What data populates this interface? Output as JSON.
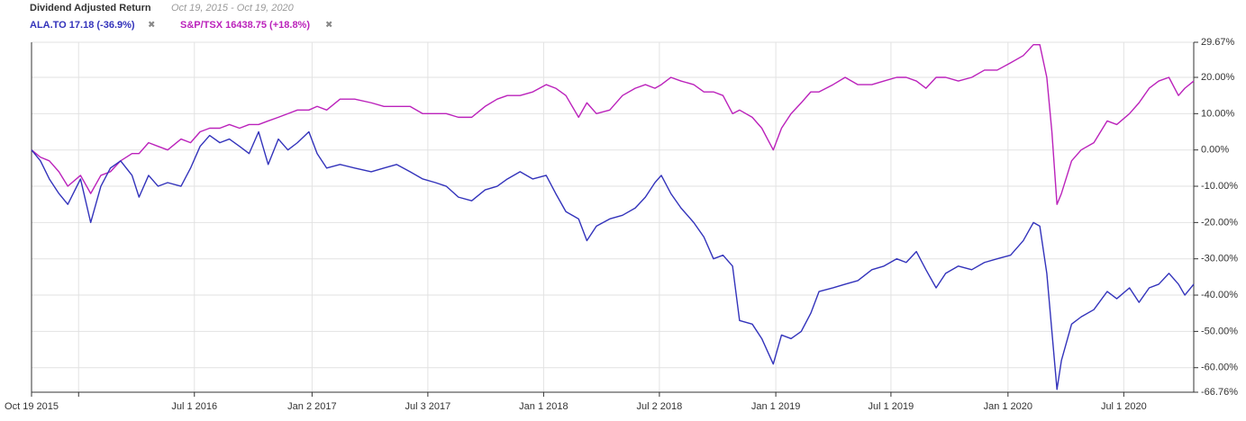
{
  "chart_data": {
    "type": "line",
    "title": "Dividend Adjusted Return",
    "subtitle": "Oct 19, 2015 - Oct 19, 2020",
    "x": [
      "2015-10-19",
      "2015-11-02",
      "2015-11-16",
      "2015-12-01",
      "2015-12-15",
      "2016-01-04",
      "2016-01-20",
      "2016-02-05",
      "2016-02-20",
      "2016-03-07",
      "2016-03-25",
      "2016-04-05",
      "2016-04-20",
      "2016-05-05",
      "2016-05-20",
      "2016-06-10",
      "2016-06-25",
      "2016-07-10",
      "2016-07-25",
      "2016-08-10",
      "2016-08-25",
      "2016-09-10",
      "2016-09-25",
      "2016-10-10",
      "2016-10-25",
      "2016-11-10",
      "2016-11-25",
      "2016-12-10",
      "2016-12-28",
      "2017-01-10",
      "2017-01-25",
      "2017-02-15",
      "2017-03-10",
      "2017-04-05",
      "2017-04-25",
      "2017-05-15",
      "2017-06-05",
      "2017-06-25",
      "2017-07-15",
      "2017-08-01",
      "2017-08-20",
      "2017-09-10",
      "2017-10-01",
      "2017-10-20",
      "2017-11-05",
      "2017-11-25",
      "2017-12-15",
      "2018-01-05",
      "2018-01-20",
      "2018-02-05",
      "2018-02-25",
      "2018-03-10",
      "2018-03-25",
      "2018-04-15",
      "2018-05-05",
      "2018-05-25",
      "2018-06-10",
      "2018-06-25",
      "2018-07-05",
      "2018-07-20",
      "2018-08-05",
      "2018-08-25",
      "2018-09-10",
      "2018-09-25",
      "2018-10-10",
      "2018-10-25",
      "2018-11-05",
      "2018-11-25",
      "2018-12-10",
      "2018-12-28",
      "2019-01-10",
      "2019-01-25",
      "2019-02-10",
      "2019-02-25",
      "2019-03-10",
      "2019-04-01",
      "2019-04-20",
      "2019-05-10",
      "2019-06-01",
      "2019-06-20",
      "2019-07-10",
      "2019-07-25",
      "2019-08-10",
      "2019-08-25",
      "2019-09-10",
      "2019-09-25",
      "2019-10-15",
      "2019-11-05",
      "2019-11-25",
      "2019-12-15",
      "2020-01-05",
      "2020-01-25",
      "2020-02-10",
      "2020-02-20",
      "2020-03-02",
      "2020-03-10",
      "2020-03-18",
      "2020-03-25",
      "2020-04-10",
      "2020-04-25",
      "2020-05-15",
      "2020-06-05",
      "2020-06-20",
      "2020-07-10",
      "2020-07-25",
      "2020-08-10",
      "2020-08-25",
      "2020-09-10",
      "2020-09-25",
      "2020-10-05",
      "2020-10-19"
    ],
    "series": [
      {
        "name": "ALA.TO 17.18 (-36.9%)",
        "color": "#3333bb",
        "values": [
          0,
          -3,
          -8,
          -12,
          -15,
          -8,
          -20,
          -10,
          -5,
          -3,
          -7,
          -13,
          -7,
          -10,
          -9,
          -10,
          -5,
          1,
          4,
          2,
          3,
          1,
          -1,
          5,
          -4,
          3,
          0,
          2,
          5,
          -1,
          -5,
          -4,
          -5,
          -6,
          -5,
          -4,
          -6,
          -8,
          -9,
          -10,
          -13,
          -14,
          -11,
          -10,
          -8,
          -6,
          -8,
          -7,
          -12,
          -17,
          -19,
          -25,
          -21,
          -19,
          -18,
          -16,
          -13,
          -9,
          -7,
          -12,
          -16,
          -20,
          -24,
          -30,
          -29,
          -32,
          -47,
          -48,
          -52,
          -59,
          -51,
          -52,
          -50,
          -45,
          -39,
          -38,
          -37,
          -36,
          -33,
          -32,
          -30,
          -31,
          -28,
          -33,
          -38,
          -34,
          -32,
          -33,
          -31,
          -30,
          -29,
          -25,
          -20,
          -21,
          -34,
          -50,
          -66,
          -58,
          -48,
          -46,
          -44,
          -39,
          -41,
          -38,
          -42,
          -38,
          -37,
          -34,
          -37,
          -40,
          -37
        ]
      },
      {
        "name": "S&P/TSX 16438.75 (+18.8%)",
        "color": "#bb22bb",
        "values": [
          0,
          -2,
          -3,
          -6,
          -10,
          -7,
          -12,
          -7,
          -6,
          -3,
          -1,
          -1,
          2,
          1,
          0,
          3,
          2,
          5,
          6,
          6,
          7,
          6,
          7,
          7,
          8,
          9,
          10,
          11,
          11,
          12,
          11,
          14,
          14,
          13,
          12,
          12,
          12,
          10,
          10,
          10,
          9,
          9,
          12,
          14,
          15,
          15,
          16,
          18,
          17,
          15,
          9,
          13,
          10,
          11,
          15,
          17,
          18,
          17,
          18,
          20,
          19,
          18,
          16,
          16,
          15,
          10,
          11,
          9,
          6,
          0,
          6,
          10,
          13,
          16,
          16,
          18,
          20,
          18,
          18,
          19,
          20,
          20,
          19,
          17,
          20,
          20,
          19,
          20,
          22,
          22,
          24,
          26,
          29,
          29,
          20,
          5,
          -15,
          -12,
          -3,
          0,
          2,
          8,
          7,
          10,
          13,
          17,
          19,
          20,
          15,
          17,
          19
        ]
      }
    ],
    "xlim": [
      "2015-10-19",
      "2020-10-19"
    ],
    "xticks": [
      {
        "value": "2015-10-19",
        "label": "Oct 19 2015"
      },
      {
        "value": "2016-01-01",
        "label": null
      },
      {
        "value": "2016-07-01",
        "label": "Jul 1 2016"
      },
      {
        "value": "2017-01-02",
        "label": "Jan 2 2017"
      },
      {
        "value": "2017-07-03",
        "label": "Jul 3 2017"
      },
      {
        "value": "2018-01-01",
        "label": "Jan 1 2018"
      },
      {
        "value": "2018-07-02",
        "label": "Jul 2 2018"
      },
      {
        "value": "2019-01-01",
        "label": "Jan 1 2019"
      },
      {
        "value": "2019-07-01",
        "label": "Jul 1 2019"
      },
      {
        "value": "2020-01-01",
        "label": "Jan 1 2020"
      },
      {
        "value": "2020-07-01",
        "label": "Jul 1 2020"
      }
    ],
    "ylim": [
      -66.76,
      29.67
    ],
    "yticks": [
      {
        "value": 29.67,
        "label": "29.67%"
      },
      {
        "value": 20,
        "label": "20.00%"
      },
      {
        "value": 10,
        "label": "10.00%"
      },
      {
        "value": 0,
        "label": "0.00%"
      },
      {
        "value": -10,
        "label": "-10.00%"
      },
      {
        "value": -20,
        "label": "-20.00%"
      },
      {
        "value": -30,
        "label": "-30.00%"
      },
      {
        "value": -40,
        "label": "-40.00%"
      },
      {
        "value": -50,
        "label": "-50.00%"
      },
      {
        "value": -60,
        "label": "-60.00%"
      },
      {
        "value": -66.76,
        "label": "-66.76%"
      }
    ],
    "grid": true
  }
}
